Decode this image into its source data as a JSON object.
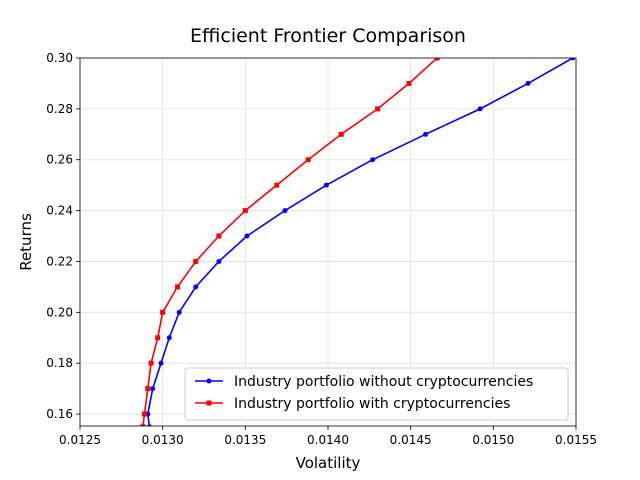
{
  "chart_data": {
    "type": "line",
    "title": "Efficient Frontier Comparison",
    "x_label": "Volatility",
    "y_label": "Returns",
    "xlim": [
      0.0125,
      0.0155
    ],
    "ylim": [
      0.1553,
      0.3
    ],
    "xticks": [
      0.0125,
      {
        "value": 0.013,
        "label": "0.0130"
      },
      0.0135,
      {
        "value": 0.014,
        "label": "0.0140"
      },
      0.0145,
      {
        "value": 0.015,
        "label": "0.0150"
      },
      0.0155
    ],
    "yticks": [
      0.16,
      0.18,
      {
        "value": 0.2,
        "label": "0.20"
      },
      0.22,
      0.24,
      0.26,
      0.28,
      {
        "value": 0.3,
        "label": "0.30"
      }
    ],
    "grid": true,
    "legend": "lower right",
    "series": [
      {
        "name": "Industry portfolio without cryptocurrencies",
        "color": "#0000ff",
        "marker": "circle",
        "x": [
          0.01292,
          0.01291,
          0.01294,
          0.01299,
          0.01304,
          0.0131,
          0.0132,
          0.01334,
          0.01351,
          0.01374,
          0.01399,
          0.01427,
          0.01459,
          0.01492,
          0.01521,
          0.01548
        ],
        "values": [
          0.155,
          0.16,
          0.17,
          0.18,
          0.19,
          0.2,
          0.21,
          0.22,
          0.23,
          0.24,
          0.25,
          0.26,
          0.27,
          0.28,
          0.29,
          0.3
        ]
      },
      {
        "name": "Industry portfolio with cryptocurrencies",
        "color": "#ff0000",
        "marker": "square",
        "x": [
          0.01288,
          0.01289,
          0.01291,
          0.01293,
          0.01297,
          0.013,
          0.01309,
          0.0132,
          0.01334,
          0.0135,
          0.01369,
          0.01388,
          0.01408,
          0.0143,
          0.01449,
          0.01466
        ],
        "values": [
          0.155,
          0.16,
          0.17,
          0.18,
          0.19,
          0.2,
          0.21,
          0.22,
          0.23,
          0.24,
          0.25,
          0.26,
          0.27,
          0.28,
          0.29,
          0.3
        ]
      }
    ]
  }
}
